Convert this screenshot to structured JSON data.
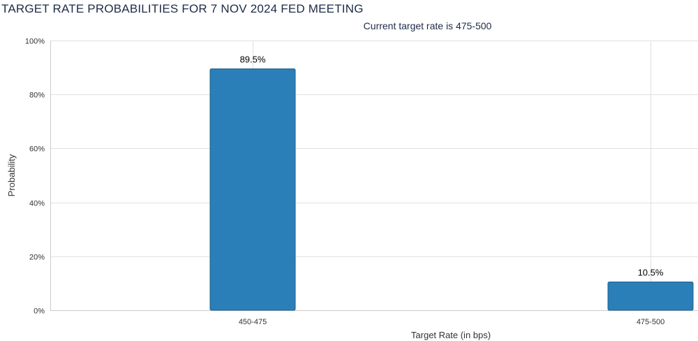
{
  "chart_data": {
    "type": "bar",
    "title": "TARGET RATE PROBABILITIES FOR 7 NOV 2024 FED MEETING",
    "subtitle": "Current target rate is 475-500",
    "xlabel": "Target Rate (in bps)",
    "ylabel": "Probability",
    "categories": [
      "450-475",
      "475-500"
    ],
    "values": [
      89.5,
      10.5
    ],
    "data_labels": [
      "89.5%",
      "10.5%"
    ],
    "ylim": [
      0,
      100
    ],
    "yticks": [
      0,
      20,
      40,
      60,
      80,
      100
    ],
    "ytick_labels": [
      "0%",
      "20%",
      "40%",
      "60%",
      "80%",
      "100%"
    ],
    "grid": true,
    "bar_color": "#2a7fb8",
    "bar_border_color": "#1f5f8b",
    "grid_color": "#e0e0e0",
    "axis_color": "#cccccc"
  }
}
